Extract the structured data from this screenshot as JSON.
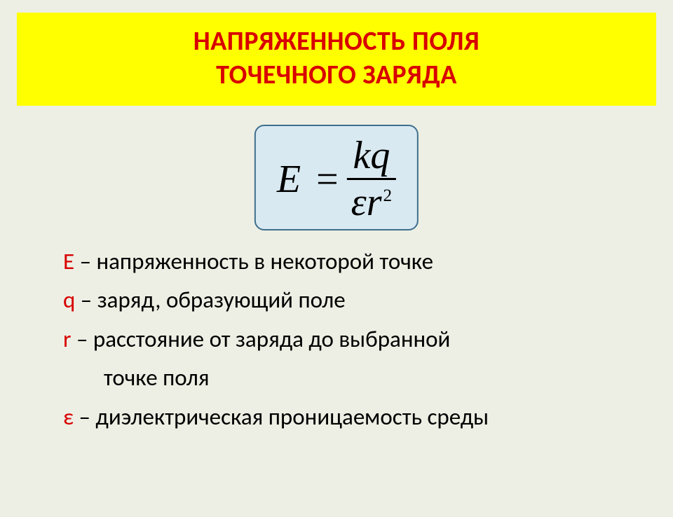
{
  "colors": {
    "background": "#edefe4",
    "title_bg": "#ffff00",
    "title_text": "#d80000",
    "formula_bg": "#d9e9f1",
    "formula_border": "#3f6f8f",
    "symbol": "#d80000",
    "body_text": "#000000"
  },
  "title": {
    "line1": "НАПРЯЖЕННОСТЬ  ПОЛЯ",
    "line2": "ТОЧЕЧНОГО   ЗАРЯДА"
  },
  "formula": {
    "lhs": "E",
    "equals": "=",
    "numerator": "kq",
    "denominator_eps": "ε",
    "denominator_r": "r",
    "denominator_exp": "2"
  },
  "definitions": {
    "e_sym": "E",
    "e_text": " – напряженность в некоторой точке",
    "q_sym": "q",
    "q_text": " – заряд, образующий поле",
    "r_sym": "r",
    "r_text1": " – расстояние от заряда до выбранной",
    "r_text2": "точке поля",
    "eps_sym": "ε",
    "eps_text": " – диэлектрическая проницаемость среды"
  }
}
